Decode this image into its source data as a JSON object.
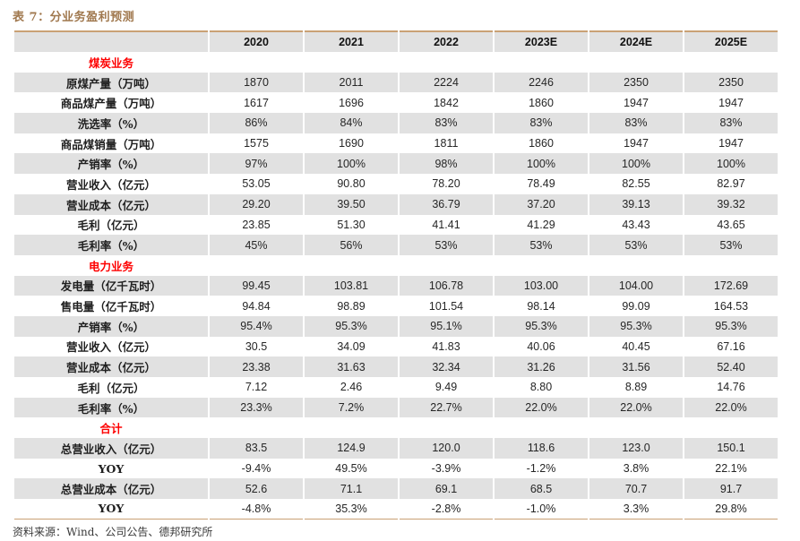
{
  "title": "表 7：分业务盈利预测",
  "source_note": "资料来源：Wind、公司公告、德邦研究所",
  "colors": {
    "title_brown": "#a0784e",
    "border_tan": "#c9a175",
    "section_red": "#fe0000",
    "shade_gray": "#e1e1e1"
  },
  "table": {
    "columns": [
      "",
      "2020",
      "2021",
      "2022",
      "2023E",
      "2024E",
      "2025E"
    ],
    "rows": [
      {
        "type": "section",
        "label": "煤炭业务",
        "values": [
          "",
          "",
          "",
          "",
          "",
          ""
        ]
      },
      {
        "type": "data",
        "label": "原煤产量（万吨）",
        "values": [
          "1870",
          "2011",
          "2224",
          "2246",
          "2350",
          "2350"
        ]
      },
      {
        "type": "data",
        "label": "商品煤产量（万吨）",
        "values": [
          "1617",
          "1696",
          "1842",
          "1860",
          "1947",
          "1947"
        ]
      },
      {
        "type": "data",
        "label": "洗选率（%）",
        "values": [
          "86%",
          "84%",
          "83%",
          "83%",
          "83%",
          "83%"
        ]
      },
      {
        "type": "data",
        "label": "商品煤销量（万吨）",
        "values": [
          "1575",
          "1690",
          "1811",
          "1860",
          "1947",
          "1947"
        ]
      },
      {
        "type": "data",
        "label": "产销率（%）",
        "values": [
          "97%",
          "100%",
          "98%",
          "100%",
          "100%",
          "100%"
        ]
      },
      {
        "type": "data",
        "label": "营业收入（亿元）",
        "values": [
          "53.05",
          "90.80",
          "78.20",
          "78.49",
          "82.55",
          "82.97"
        ]
      },
      {
        "type": "data",
        "label": "营业成本（亿元）",
        "values": [
          "29.20",
          "39.50",
          "36.79",
          "37.20",
          "39.13",
          "39.32"
        ]
      },
      {
        "type": "data",
        "label": "毛利（亿元）",
        "values": [
          "23.85",
          "51.30",
          "41.41",
          "41.29",
          "43.43",
          "43.65"
        ]
      },
      {
        "type": "data",
        "label": "毛利率（%）",
        "values": [
          "45%",
          "56%",
          "53%",
          "53%",
          "53%",
          "53%"
        ]
      },
      {
        "type": "section",
        "label": "电力业务",
        "values": [
          "",
          "",
          "",
          "",
          "",
          ""
        ]
      },
      {
        "type": "data",
        "label": "发电量（亿千瓦时）",
        "values": [
          "99.45",
          "103.81",
          "106.78",
          "103.00",
          "104.00",
          "172.69"
        ]
      },
      {
        "type": "data",
        "label": "售电量（亿千瓦时）",
        "values": [
          "94.84",
          "98.89",
          "101.54",
          "98.14",
          "99.09",
          "164.53"
        ]
      },
      {
        "type": "data",
        "label": "产销率（%）",
        "values": [
          "95.4%",
          "95.3%",
          "95.1%",
          "95.3%",
          "95.3%",
          "95.3%"
        ]
      },
      {
        "type": "data",
        "label": "营业收入（亿元）",
        "values": [
          "30.5",
          "34.09",
          "41.83",
          "40.06",
          "40.45",
          "67.16"
        ]
      },
      {
        "type": "data",
        "label": "营业成本（亿元）",
        "values": [
          "23.38",
          "31.63",
          "32.34",
          "31.26",
          "31.56",
          "52.40"
        ]
      },
      {
        "type": "data",
        "label": "毛利（亿元）",
        "values": [
          "7.12",
          "2.46",
          "9.49",
          "8.80",
          "8.89",
          "14.76"
        ]
      },
      {
        "type": "data",
        "label": "毛利率（%）",
        "values": [
          "23.3%",
          "7.2%",
          "22.7%",
          "22.0%",
          "22.0%",
          "22.0%"
        ]
      },
      {
        "type": "section",
        "label": "合计",
        "values": [
          "",
          "",
          "",
          "",
          "",
          ""
        ]
      },
      {
        "type": "data",
        "label": "总营业收入（亿元）",
        "values": [
          "83.5",
          "124.9",
          "120.0",
          "118.6",
          "123.0",
          "150.1"
        ]
      },
      {
        "type": "data",
        "label": "YOY",
        "values": [
          "-9.4%",
          "49.5%",
          "-3.9%",
          "-1.2%",
          "3.8%",
          "22.1%"
        ]
      },
      {
        "type": "data",
        "label": "总营业成本（亿元）",
        "values": [
          "52.6",
          "71.1",
          "69.1",
          "68.5",
          "70.7",
          "91.7"
        ]
      },
      {
        "type": "data",
        "label": "YOY",
        "values": [
          "-4.8%",
          "35.3%",
          "-2.8%",
          "-1.0%",
          "3.3%",
          "29.8%"
        ]
      }
    ]
  }
}
